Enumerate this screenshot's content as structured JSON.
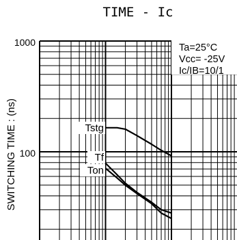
{
  "chart_data": {
    "type": "line",
    "title": "TIME - Ic",
    "ylabel": "SWITCHING TIME : (ns)",
    "xlabel": "",
    "yscale": "log",
    "xscale": "log",
    "ylim": [
      20,
      1000
    ],
    "xlim": [
      0.01,
      1
    ],
    "y_ticks": [
      "1000",
      "100"
    ],
    "grid": true,
    "conditions": [
      "Ta=25°C",
      "Vcc= -25V",
      "Ic/IB=10/1"
    ],
    "series": [
      {
        "name": "Tstg",
        "x": [
          0.1,
          0.15,
          0.2,
          0.3,
          0.5,
          0.7,
          1.0
        ],
        "y": [
          165,
          165,
          160,
          140,
          117,
          103,
          92
        ]
      },
      {
        "name": "Tf",
        "x": [
          0.1,
          0.15,
          0.2,
          0.3,
          0.5,
          0.7,
          1.0
        ],
        "y": [
          79,
          62,
          52,
          43,
          35,
          30,
          28
        ]
      },
      {
        "name": "Ton",
        "x": [
          0.1,
          0.15,
          0.2,
          0.3,
          0.5,
          0.7,
          1.0
        ],
        "y": [
          71,
          58,
          50,
          42,
          34,
          28,
          25
        ]
      }
    ]
  }
}
